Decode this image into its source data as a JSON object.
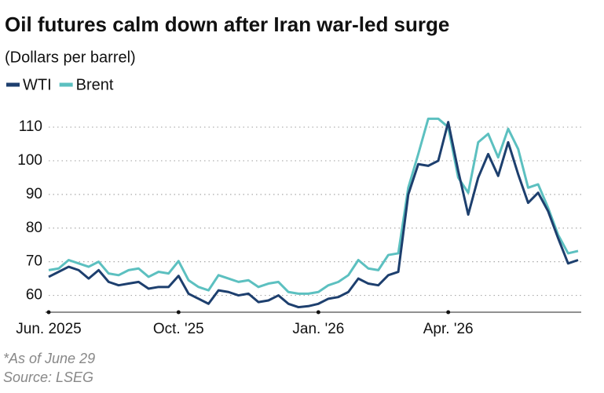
{
  "chart_data": {
    "type": "line",
    "title": "Oil futures calm down after Iran war-led surge",
    "subtitle": "(Dollars per barrel)",
    "footnote": "*As of June 29",
    "source": "Source: LSEG",
    "categories": [
      "Jun. 2025",
      null,
      null,
      null,
      null,
      null,
      null,
      null,
      null,
      null,
      null,
      null,
      null,
      "Oct. '25",
      null,
      null,
      null,
      null,
      null,
      null,
      null,
      null,
      null,
      null,
      null,
      null,
      null,
      "Jan. '26",
      null,
      null,
      null,
      null,
      null,
      null,
      null,
      null,
      null,
      null,
      null,
      null,
      "Apr. '26",
      null,
      null,
      null,
      null,
      null,
      null,
      null,
      null,
      null,
      null,
      null,
      null,
      null
    ],
    "series": [
      {
        "name": "WTI",
        "color": "#1d3f6e",
        "values": [
          65.5,
          67,
          68.5,
          67.5,
          65,
          67.5,
          64,
          63,
          63.5,
          64,
          62,
          62.5,
          62.5,
          65.8,
          60.5,
          59,
          57.5,
          61.5,
          61,
          60,
          60.5,
          58,
          58.5,
          60,
          57.5,
          56.5,
          56.8,
          57.5,
          59,
          59.5,
          61,
          65,
          63.5,
          63,
          66,
          67,
          90,
          99,
          98.5,
          100,
          111.5,
          97,
          84,
          95,
          102,
          95.5,
          105.5,
          96,
          87.5,
          90.5,
          85,
          77,
          69.5,
          70.5
        ]
      },
      {
        "name": "Brent",
        "color": "#5cc0c0",
        "values": [
          67.5,
          68,
          70.5,
          69.5,
          68.5,
          70,
          66.5,
          66,
          67.5,
          68,
          65.5,
          67,
          66.5,
          70.2,
          64.5,
          62.5,
          61.5,
          66,
          65,
          64,
          64.5,
          62.5,
          63.5,
          64,
          61,
          60.5,
          60.5,
          61,
          63,
          64,
          66,
          70.5,
          68,
          67.5,
          72,
          72.5,
          92,
          102,
          112.5,
          112.5,
          110,
          95,
          90.5,
          105.5,
          108,
          101,
          109.5,
          103.5,
          92,
          93,
          86,
          78,
          72.5,
          73.2
        ]
      }
    ],
    "ylim": [
      55,
      115
    ],
    "yticks": [
      60,
      70,
      80,
      90,
      100,
      110
    ],
    "grid": true,
    "legend": "top-left"
  }
}
